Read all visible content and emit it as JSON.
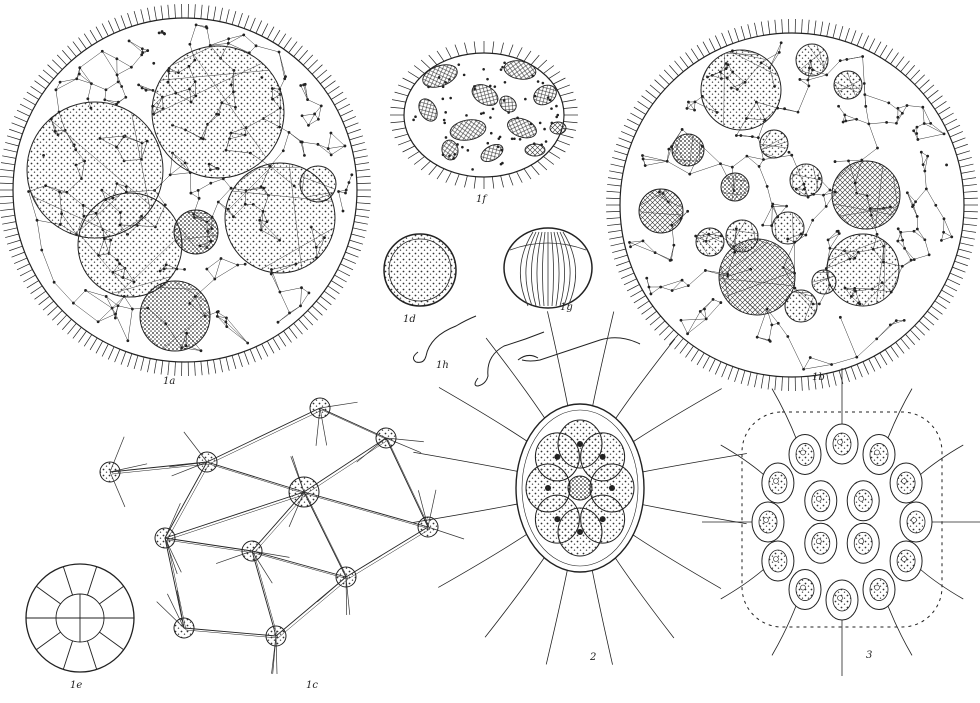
{
  "plate": {
    "labels": {
      "fig_1a": "1a",
      "fig_1f": "1f",
      "fig_1b": "1b",
      "fig_1d": "1d",
      "fig_1g": "1g",
      "fig_1h": "1h",
      "fig_1c": "1c",
      "fig_1e": "1e",
      "fig_2": "2",
      "fig_3": "3"
    },
    "colors": {
      "ink": "#222222",
      "paper": "#ffffff",
      "stipple": "#555555"
    }
  }
}
